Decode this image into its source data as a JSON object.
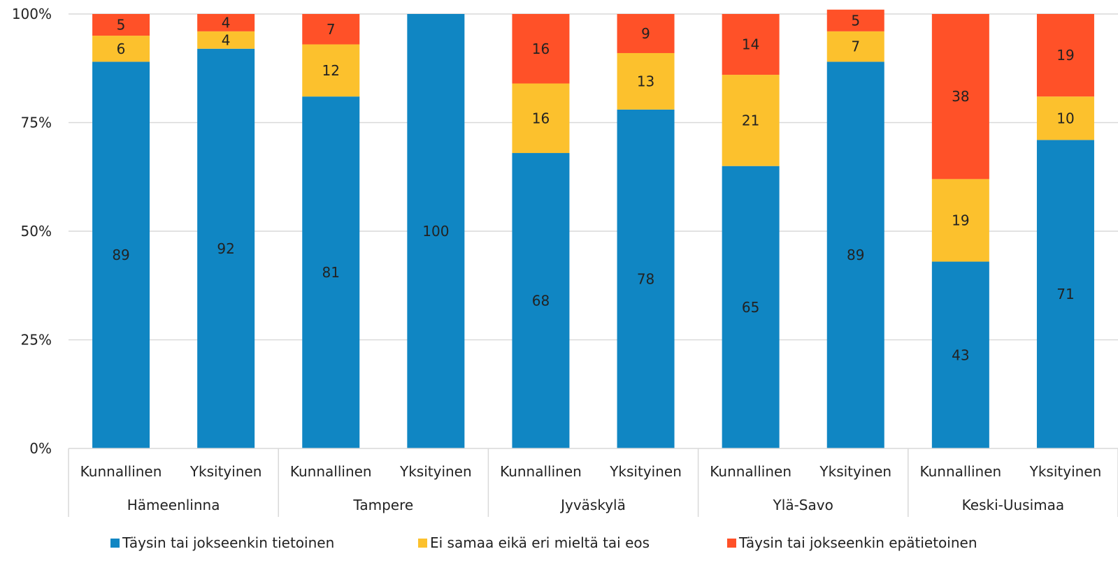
{
  "chart_data": {
    "type": "bar",
    "stacked": true,
    "percent_stacked": true,
    "groups": [
      "Hämeenlinna",
      "Tampere",
      "Jyväskylä",
      "Ylä-Savo",
      "Keski-Uusimaa"
    ],
    "subcategories": [
      "Kunnallinen",
      "Yksityinen"
    ],
    "series": [
      {
        "name": "Täysin tai jokseenkin tietoinen",
        "color": "#1086C3",
        "values": [
          89,
          92,
          81,
          100,
          68,
          78,
          65,
          89,
          43,
          71
        ]
      },
      {
        "name": "Ei samaa eikä eri mieltä tai eos",
        "color": "#FCC12D",
        "values": [
          6,
          4,
          12,
          0,
          16,
          13,
          21,
          7,
          19,
          10
        ]
      },
      {
        "name": "Täysin tai jokseenkin epätietoinen",
        "color": "#FF5128",
        "values": [
          5,
          4,
          7,
          0,
          16,
          9,
          14,
          5,
          38,
          19
        ]
      }
    ],
    "yticks": [
      "0%",
      "25%",
      "50%",
      "75%",
      "100%"
    ],
    "ylim": [
      0,
      100
    ],
    "grid": true,
    "legend_position": "bottom"
  }
}
